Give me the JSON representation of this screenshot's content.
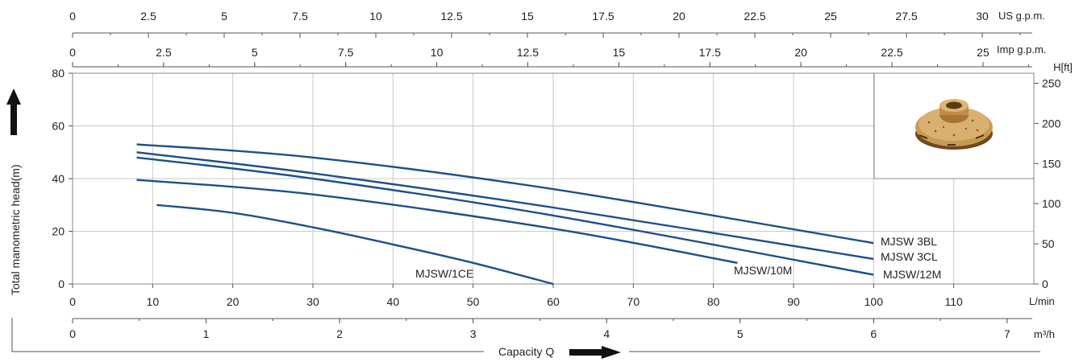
{
  "chart_data": {
    "type": "line",
    "ylabel": "Total manometric head(m)",
    "xlabel": "Capacity Q",
    "right_axis_label": "H[ft]",
    "colors": {
      "curve": "#1d4f8a",
      "grid": "#c8c8c8",
      "axis": "#555555",
      "frame": "#888888"
    },
    "grid": true,
    "ylim": [
      0,
      80
    ],
    "xlim": [
      0,
      120
    ],
    "x_unit": "L/min",
    "x_ticks": [
      0,
      10,
      20,
      30,
      40,
      50,
      60,
      70,
      80,
      90,
      100,
      110
    ],
    "y_ticks": [
      0,
      20,
      40,
      60,
      80
    ],
    "axes": {
      "us_gpm": {
        "unit": "US g.p.m.",
        "ticks": [
          "0",
          "2.5",
          "5",
          "7.5",
          "10",
          "12.5",
          "15",
          "17.5",
          "20",
          "22.5",
          "25",
          "27.5",
          "30"
        ],
        "values": [
          0,
          2.5,
          5,
          7.5,
          10,
          12.5,
          15,
          17.5,
          20,
          22.5,
          25,
          27.5,
          30
        ]
      },
      "imp_gpm": {
        "unit": "Imp g.p.m.",
        "ticks": [
          "0",
          "2.5",
          "5",
          "7.5",
          "10",
          "12.5",
          "15",
          "17.5",
          "20",
          "22.5",
          "25"
        ],
        "values": [
          0,
          2.5,
          5,
          7.5,
          10,
          12.5,
          15,
          17.5,
          20,
          22.5,
          25
        ]
      },
      "m3h": {
        "unit": "m³/h",
        "ticks": [
          "0",
          "1",
          "2",
          "3",
          "4",
          "5",
          "6",
          "7"
        ],
        "values": [
          0,
          1,
          2,
          3,
          4,
          5,
          6,
          7
        ]
      },
      "ft": {
        "ticks": [
          "0",
          "50",
          "100",
          "150",
          "200",
          "250"
        ],
        "values": [
          0,
          50,
          100,
          150,
          200,
          250
        ]
      }
    },
    "series": [
      {
        "name": "MJSW  3BL",
        "x": [
          8,
          30,
          60,
          100
        ],
        "y": [
          53,
          48,
          36,
          15.5
        ]
      },
      {
        "name": "MJSW  3CL",
        "x": [
          8,
          30,
          60,
          100
        ],
        "y": [
          50,
          42,
          29,
          9.5
        ]
      },
      {
        "name": "MJSW/12M",
        "x": [
          8,
          30,
          60,
          100
        ],
        "y": [
          48,
          40,
          26,
          3.5
        ]
      },
      {
        "name": "MJSW/10M",
        "x": [
          8,
          30,
          60,
          83
        ],
        "y": [
          39.5,
          34,
          21,
          8
        ]
      },
      {
        "name": "MJSW/1CE",
        "x": [
          10.5,
          20,
          30,
          40,
          50,
          60
        ],
        "y": [
          30,
          27,
          21.5,
          15,
          8,
          0
        ]
      }
    ]
  }
}
